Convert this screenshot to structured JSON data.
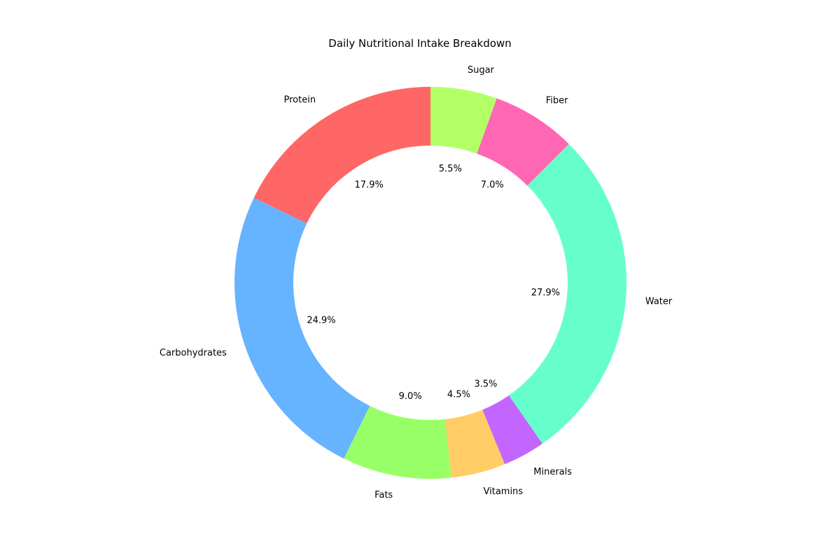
{
  "chart_data": {
    "type": "pie",
    "title": "Daily Nutritional Intake Breakdown",
    "donut": true,
    "start_angle": 90,
    "direction": "counterclockwise",
    "slices": [
      {
        "label": "Protein",
        "value": 17.9,
        "pct_text": "17.9%",
        "color": "#ff6666"
      },
      {
        "label": "Carbohydrates",
        "value": 24.9,
        "pct_text": "24.9%",
        "color": "#66b3ff"
      },
      {
        "label": "Fats",
        "value": 9.0,
        "pct_text": "9.0%",
        "color": "#99ff66"
      },
      {
        "label": "Vitamins",
        "value": 4.5,
        "pct_text": "4.5%",
        "color": "#ffcc66"
      },
      {
        "label": "Minerals",
        "value": 3.5,
        "pct_text": "3.5%",
        "color": "#c266ff"
      },
      {
        "label": "Water",
        "value": 27.9,
        "pct_text": "27.9%",
        "color": "#66ffcc"
      },
      {
        "label": "Fiber",
        "value": 7.0,
        "pct_text": "7.0%",
        "color": "#ff66b3"
      },
      {
        "label": "Sugar",
        "value": 5.5,
        "pct_text": "5.5%",
        "color": "#b3ff66"
      }
    ]
  }
}
